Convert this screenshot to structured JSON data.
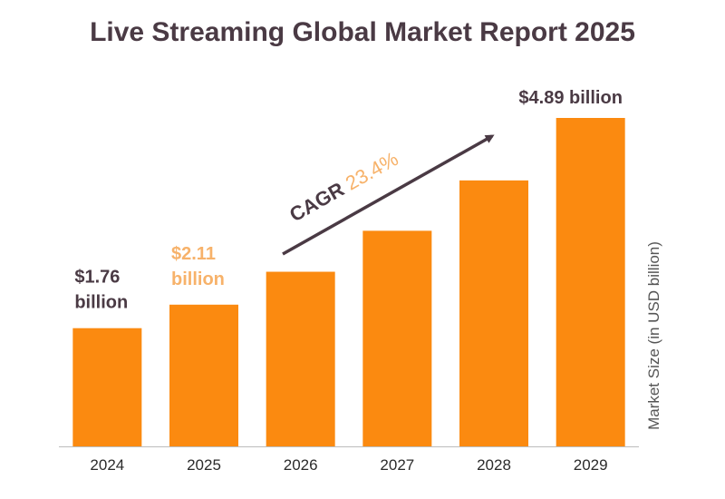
{
  "chart_data": {
    "type": "bar",
    "title": "Live Streaming Global Market Report 2025",
    "xlabel": "",
    "ylabel": "Market Size (in USD billion)",
    "categories": [
      "2024",
      "2025",
      "2026",
      "2027",
      "2028",
      "2029"
    ],
    "values": [
      1.76,
      2.11,
      2.6,
      3.21,
      3.96,
      4.89
    ],
    "ylim": [
      0,
      5.0
    ],
    "grid": false,
    "legend": "none",
    "data_labels": [
      {
        "category": "2024",
        "line1": "$1.76",
        "line2": "billion",
        "color": "#4a3a44"
      },
      {
        "category": "2025",
        "line1": "$2.11",
        "line2": "billion",
        "color": "#f7b26a"
      },
      {
        "category": "2029",
        "line1": "$4.89 billion",
        "line2": "",
        "color": "#4a3a44"
      }
    ],
    "annotation": {
      "label": "CAGR",
      "value": "23.4%",
      "label_color": "#4a3a44",
      "value_color": "#f7b26a",
      "from_category": "2026",
      "to_category": "2028"
    }
  },
  "colors": {
    "bar": "#fb8a10",
    "title": "#4a3a44",
    "axis": "#bdbdbd",
    "arrow": "#4a3a44"
  }
}
